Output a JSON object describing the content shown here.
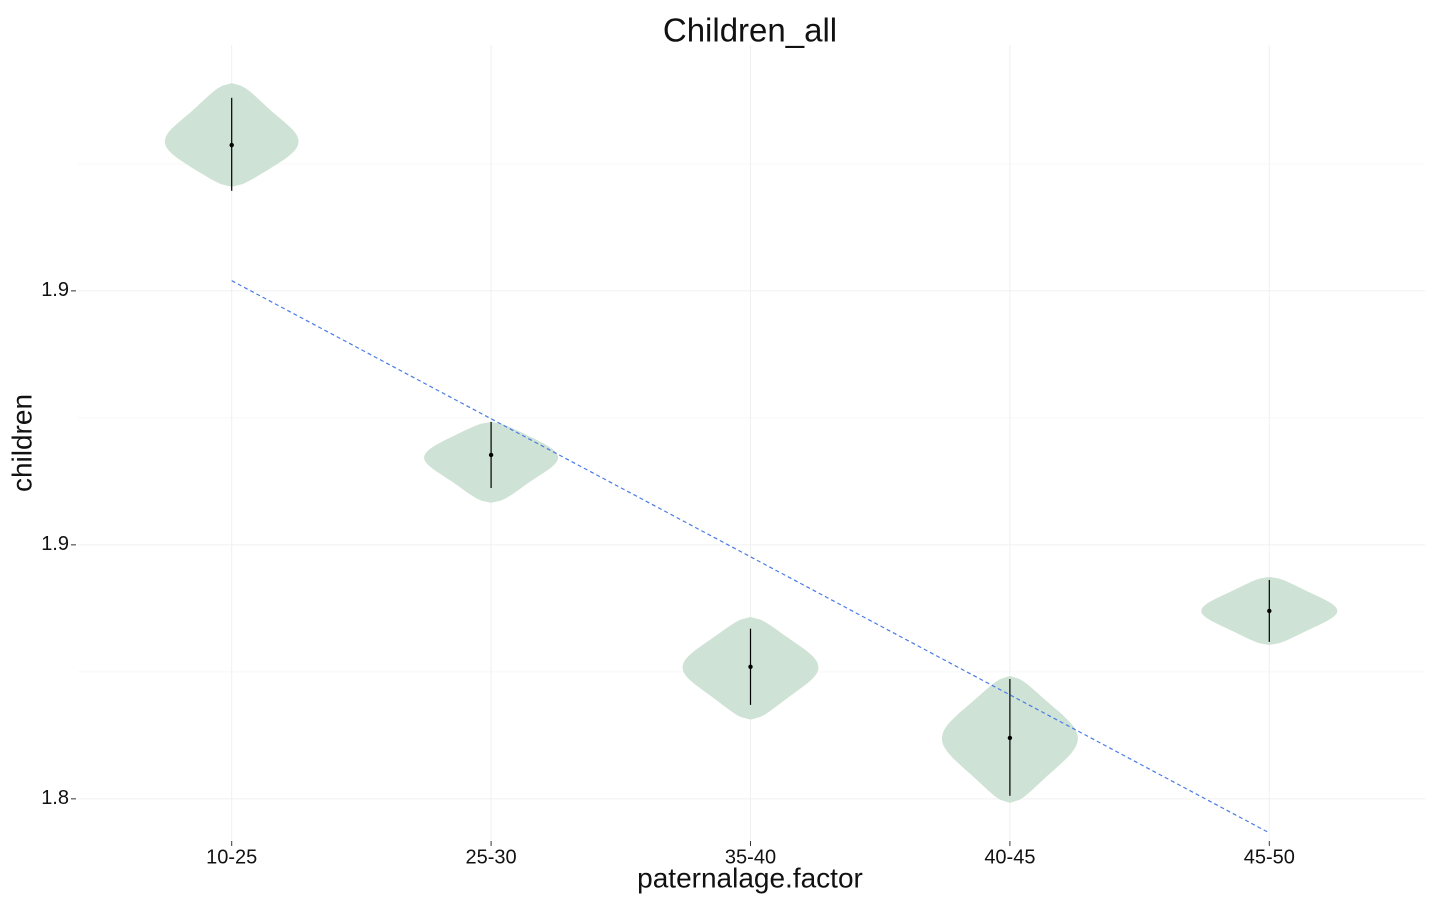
{
  "chart_data": {
    "type": "violin",
    "title": "Children_all",
    "x_label": "paternalage.factor",
    "y_label": "children",
    "categories": [
      "10-25",
      "25-30",
      "35-40",
      "40-45",
      "45-50"
    ],
    "median": [
      1.9287,
      1.8677,
      1.826,
      1.812,
      1.837
    ],
    "lower": [
      1.9197,
      1.8612,
      1.8185,
      1.8006,
      1.8309
    ],
    "upper": [
      1.938,
      1.8742,
      1.8335,
      1.8236,
      1.8431
    ],
    "ymin": [
      1.9205,
      1.8583,
      1.8156,
      1.7992,
      1.8303
    ],
    "ymax": [
      1.9409,
      1.8742,
      1.8358,
      1.8242,
      1.8437
    ],
    "color": "#cee2d5",
    "trend": {
      "values": [
        1.902,
        1.7933
      ],
      "color": "#4a7be6"
    },
    "ylim": [
      1.7919,
      1.9484
    ],
    "yticks": [
      1.8,
      {
        "value": 1.85,
        "label": "1.9"
      },
      {
        "value": 1.9,
        "label": "1.9"
      }
    ],
    "grid": true
  }
}
